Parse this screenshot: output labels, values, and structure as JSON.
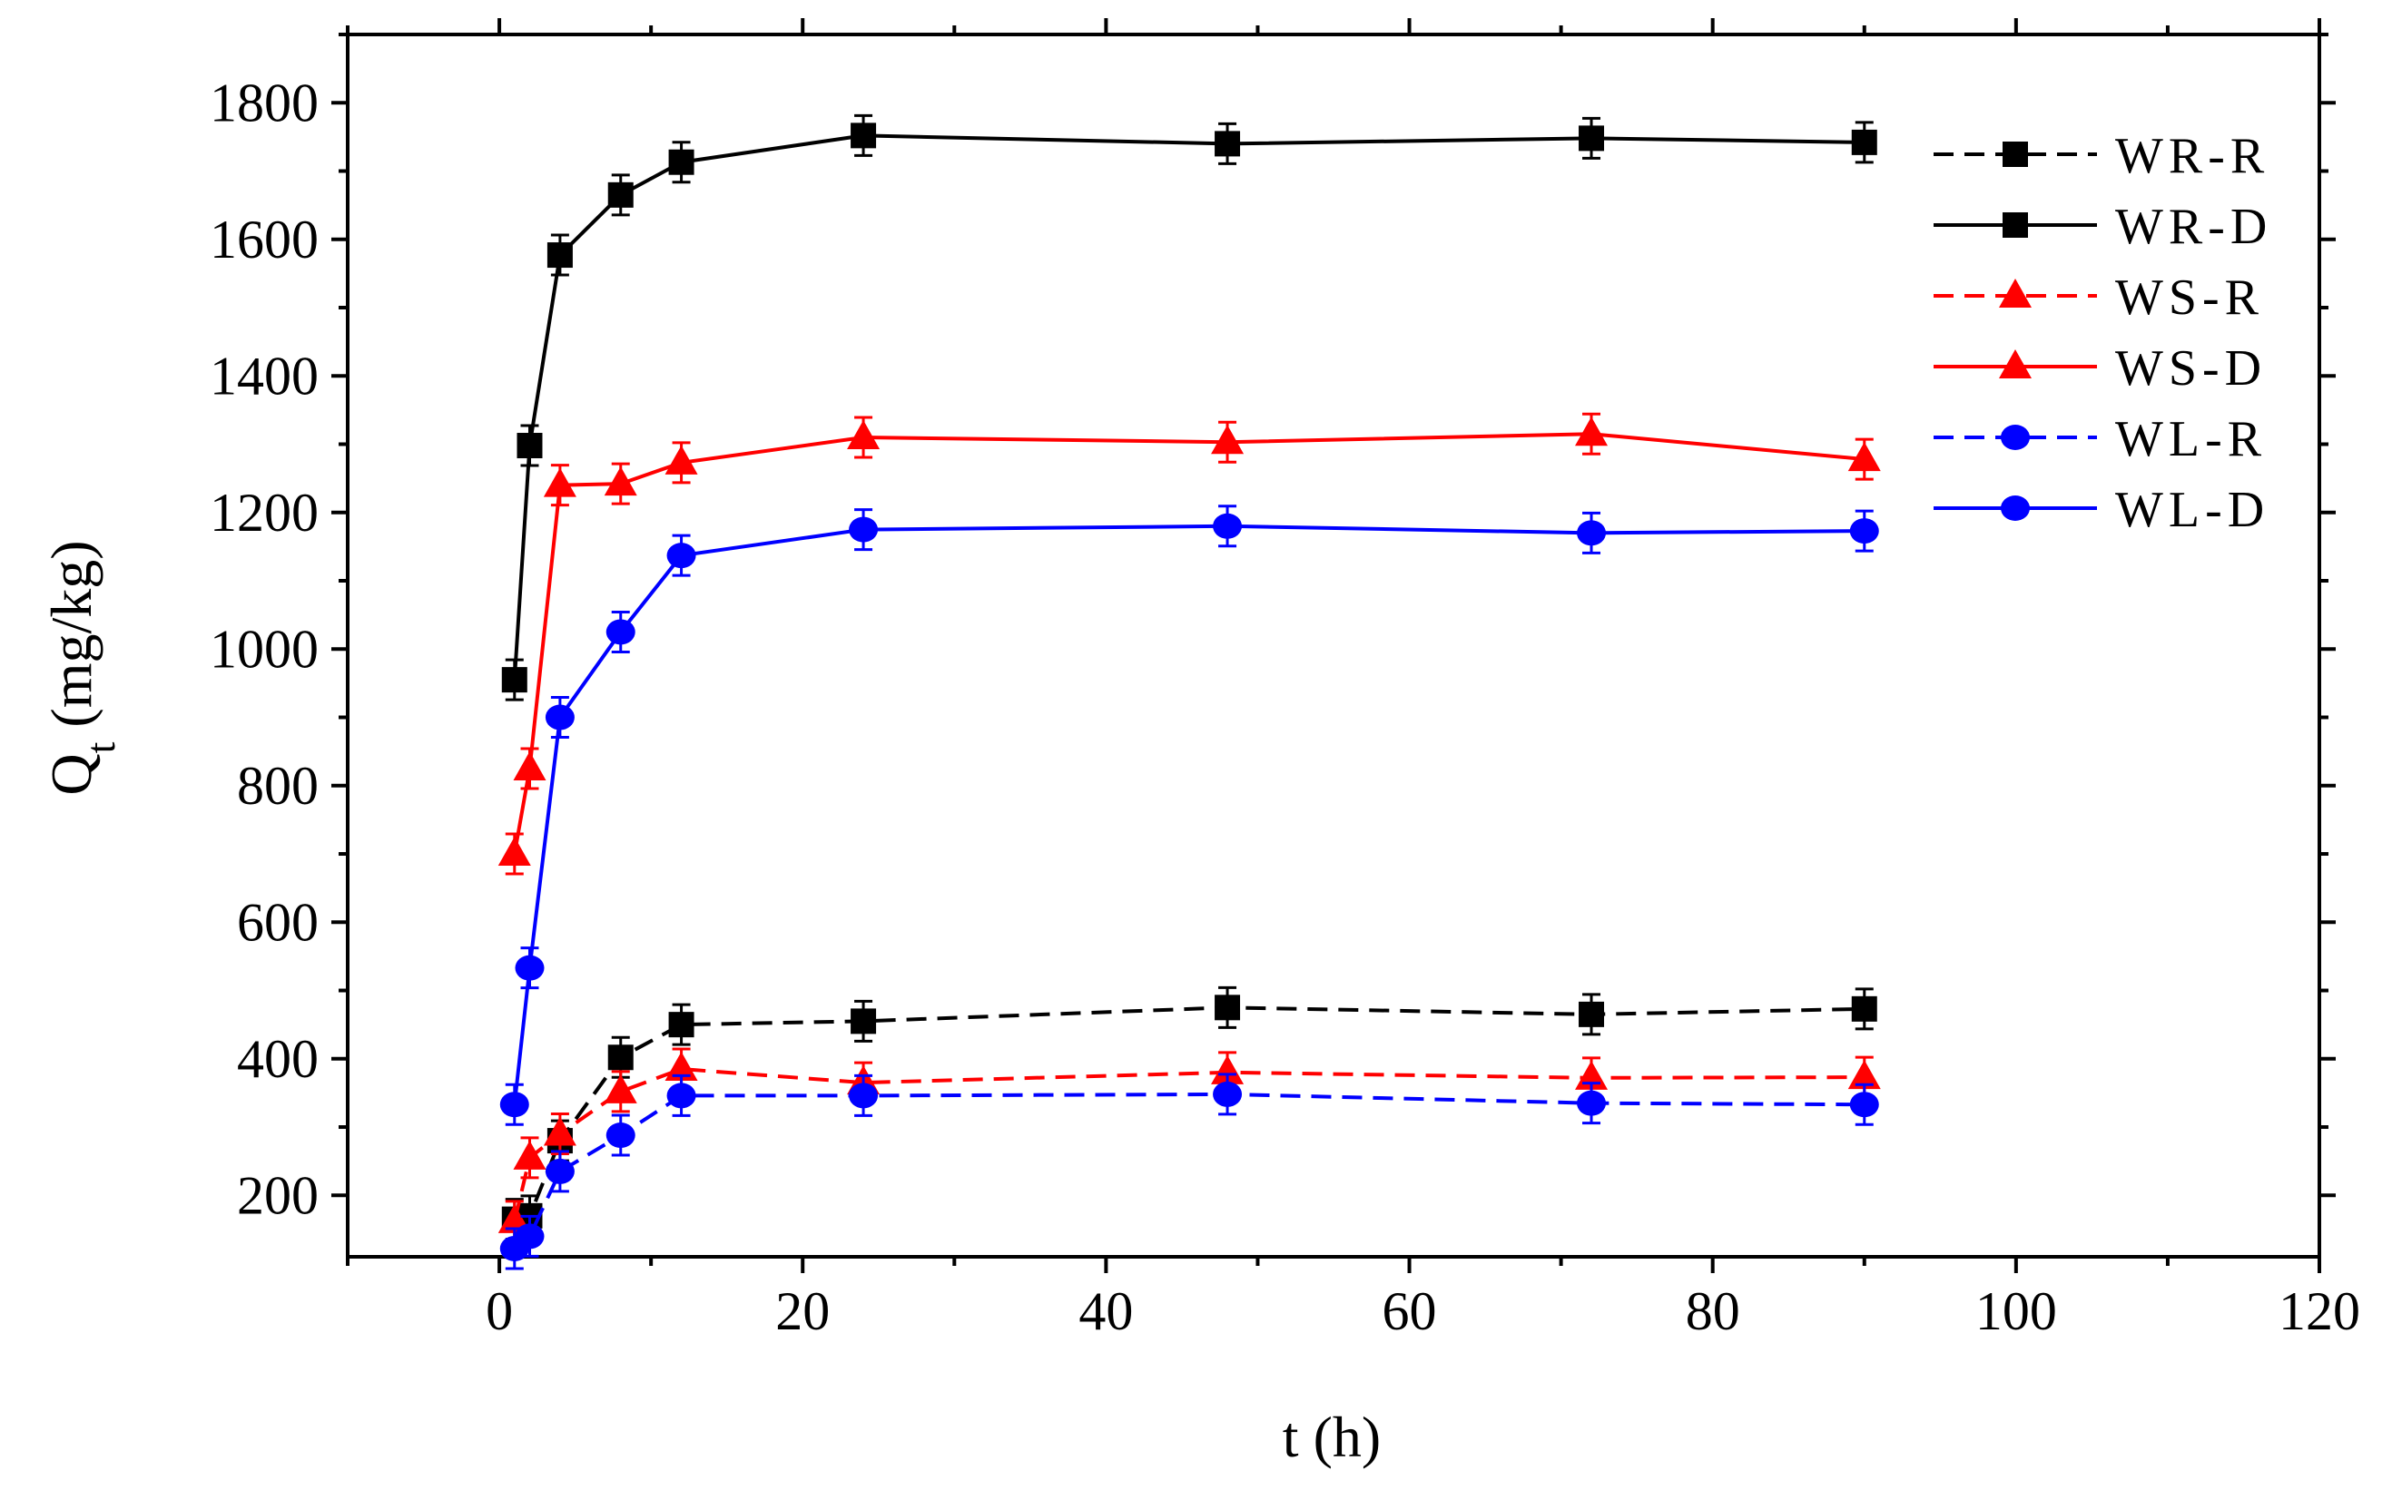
{
  "chart_data": {
    "type": "line",
    "title": "",
    "xlabel": "t (h)",
    "ylabel_main": "Q",
    "ylabel_sub": "t",
    "ylabel_unit": " (mg/kg)",
    "xlim": [
      -10,
      120
    ],
    "ylim": [
      110,
      1900
    ],
    "xticks": [
      0,
      20,
      40,
      60,
      80,
      100,
      120
    ],
    "yticks": [
      200,
      400,
      600,
      800,
      1000,
      1200,
      1400,
      1600,
      1800
    ],
    "x": [
      1,
      2,
      4,
      8,
      12,
      24,
      48,
      72,
      90
    ],
    "legend_position": "top-right",
    "series": [
      {
        "name": "WR-R",
        "color": "#000000",
        "marker": "square",
        "line": "dash",
        "values": [
          165,
          170,
          280,
          402,
          450,
          455,
          475,
          465,
          473
        ]
      },
      {
        "name": "WR-D",
        "color": "#000000",
        "marker": "square",
        "line": "solid",
        "values": [
          955,
          1298,
          1577,
          1665,
          1713,
          1752,
          1740,
          1748,
          1742
        ]
      },
      {
        "name": "WS-R",
        "color": "#ff0000",
        "marker": "triangle",
        "line": "dash",
        "values": [
          162,
          255,
          290,
          352,
          385,
          365,
          380,
          372,
          373
        ]
      },
      {
        "name": "WS-D",
        "color": "#ff0000",
        "marker": "triangle",
        "line": "solid",
        "values": [
          700,
          825,
          1240,
          1242,
          1273,
          1310,
          1303,
          1315,
          1278
        ]
      },
      {
        "name": "WL-R",
        "color": "#0000ff",
        "marker": "circle",
        "line": "dash",
        "values": [
          122,
          140,
          235,
          288,
          346,
          346,
          348,
          335,
          333
        ]
      },
      {
        "name": "WL-D",
        "color": "#0000ff",
        "marker": "circle",
        "line": "solid",
        "values": [
          333,
          533,
          900,
          1025,
          1137,
          1175,
          1180,
          1170,
          1173
        ]
      }
    ]
  }
}
